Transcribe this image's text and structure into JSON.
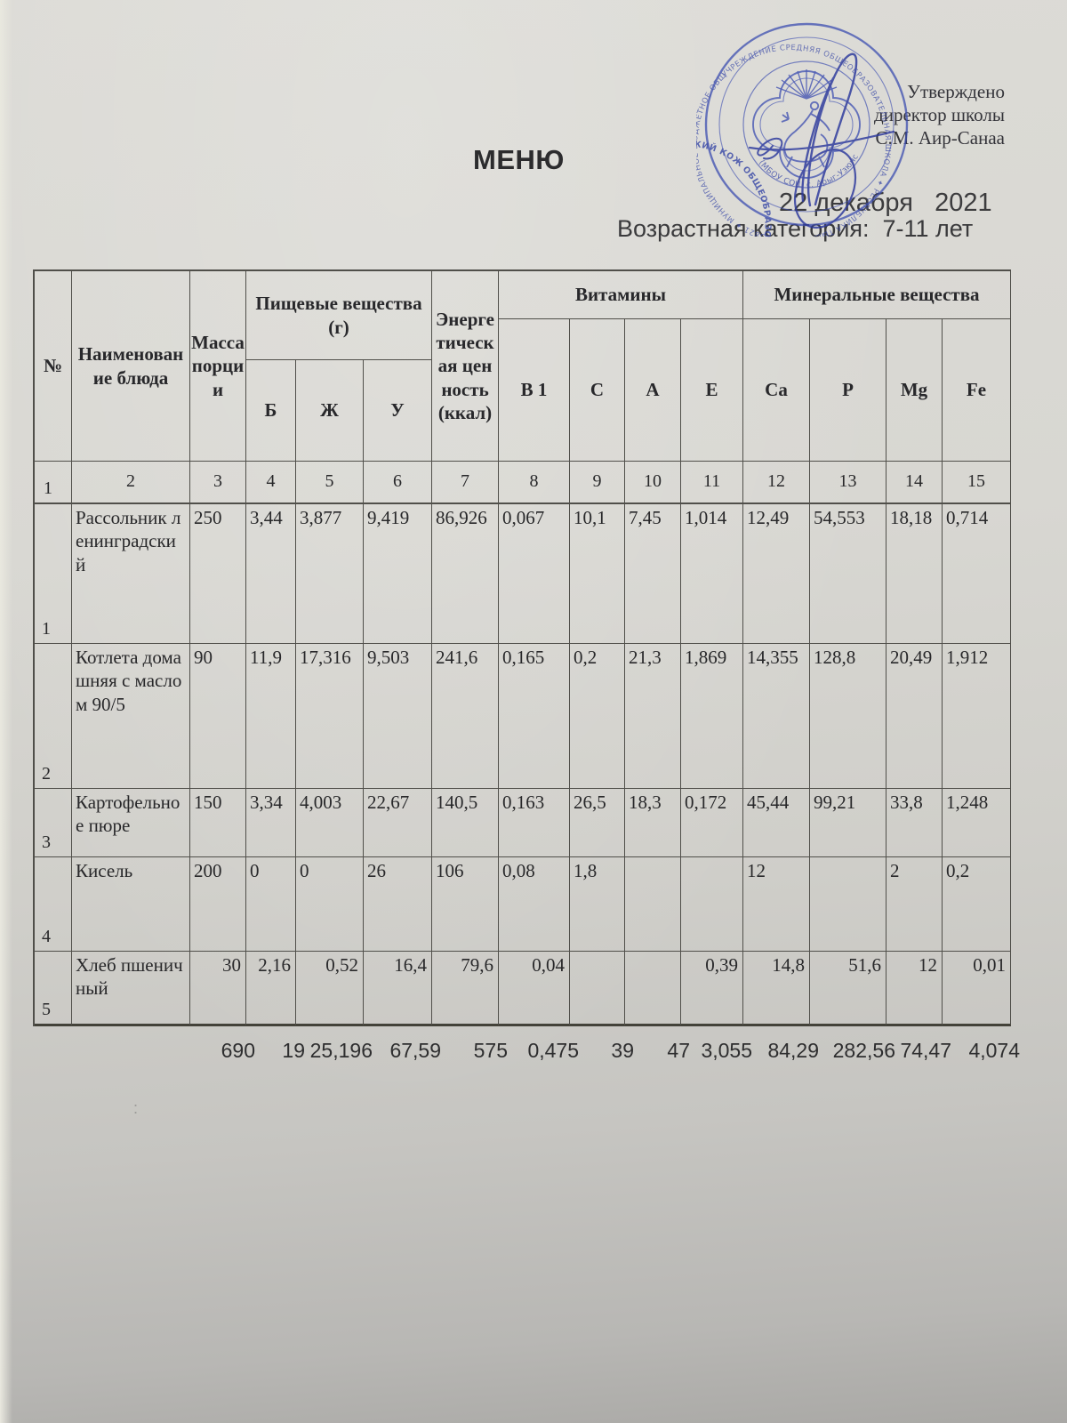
{
  "approval": {
    "line1": "Утверждено",
    "line2": "директор школы",
    "line3": "С.М. Аир-Санаа"
  },
  "title": "МЕНЮ",
  "date": "22 декабря   2021",
  "age_category": "Возрастная категория:  7-11 лет",
  "stray_mark": ":",
  "stamp": {
    "ring_outer": "УЧРЕЖДЕНИЕ СРЕДНЯЯ ОБЩЕОБРАЗОВАТЕЛЬНАЯ ШКОЛА ✦ РЕСПУБЛИКА ТЫВА ✦ 1714005821 ✦ МУНИЦИПАЛЬНОЕ БЮДЖЕТНОЕ ОБЩЕОБРАЗОВАТЕЛЬНОЕ",
    "ring_middle": "ОБЩЕОБРАЗОВАТЕЛЬНОЕ УЧРЕЖДЕНИЕ МУНИЦИПАЛЬНОГО РАЙОНА «УЛУГ-ХЕМСКИЙ КОЖУУН» ✱ ОГРН 1041700689469 ✱",
    "ring_inner_bottom": "(МБОУ СОШ с. Арыг-Узюнский)",
    "ink_color": "#3c4db0"
  },
  "table": {
    "headers": {
      "num": "№",
      "dish": "Наименование блюда",
      "mass": "Масса порции",
      "nutrients": "Пищевые вещества (г)",
      "b": "Б",
      "zh": "Ж",
      "u": "У",
      "energy": "Энергетическая ценность (ккал)",
      "vitamins": "Витамины",
      "minerals": "Минеральные вещества",
      "b1": "В 1",
      "c": "С",
      "a": "А",
      "e": "Е",
      "ca": "Ca",
      "p": "P",
      "mg": "Mg",
      "fe": "Fe"
    },
    "column_keys": [
      "num",
      "name",
      "mass",
      "b",
      "zh",
      "u",
      "kcal",
      "b1",
      "c",
      "a",
      "e",
      "ca",
      "p",
      "mg",
      "fe"
    ],
    "col_numbers": [
      "1",
      "2",
      "3",
      "4",
      "5",
      "6",
      "7",
      "8",
      "9",
      "10",
      "11",
      "12",
      "13",
      "14",
      "15"
    ],
    "rows": [
      {
        "num": "1",
        "name": "Рассольник ленинградский",
        "mass": "250",
        "b": "3,44",
        "zh": "3,877",
        "u": "9,419",
        "kcal": "86,926",
        "b1": "0,067",
        "c": "10,1",
        "a": "7,45",
        "e": "1,014",
        "ca": "12,49",
        "p": "54,553",
        "mg": "18,18",
        "fe": "0,714"
      },
      {
        "num": "2",
        "name": "Котлета домашняя с маслом 90/5",
        "mass": "90",
        "b": "11,9",
        "zh": "17,316",
        "u": "9,503",
        "kcal": "241,6",
        "b1": "0,165",
        "c": "0,2",
        "a": "21,3",
        "e": "1,869",
        "ca": "14,355",
        "p": "128,8",
        "mg": "20,49",
        "fe": "1,912"
      },
      {
        "num": "3",
        "name": "Картофельное пюре",
        "mass": "150",
        "b": "3,34",
        "zh": "4,003",
        "u": "22,67",
        "kcal": "140,5",
        "b1": "0,163",
        "c": "26,5",
        "a": "18,3",
        "e": "0,172",
        "ca": "45,44",
        "p": "99,21",
        "mg": "33,8",
        "fe": "1,248"
      },
      {
        "num": "4",
        "name": "Кисель",
        "mass": "200",
        "b": "0",
        "zh": "0",
        "u": "26",
        "kcal": "106",
        "b1": "0,08",
        "c": "1,8",
        "a": "",
        "e": "",
        "ca": "12",
        "p": "",
        "mg": "2",
        "fe": "0,2"
      },
      {
        "num": "5",
        "name": "Хлеб пшеничный",
        "mass": "30",
        "b": "2,16",
        "zh": "0,52",
        "u": "16,4",
        "kcal": "79,6",
        "b1": "0,04",
        "c": "",
        "a": "",
        "e": "0,39",
        "ca": "14,8",
        "p": "51,6",
        "mg": "12",
        "fe": "0,01"
      }
    ],
    "totals": [
      "",
      "",
      "690",
      "19",
      "25,196",
      "67,59",
      "575",
      "0,475",
      "39",
      "47",
      "3,055",
      "84,29",
      "282,56",
      "74,47",
      "4,074"
    ]
  }
}
